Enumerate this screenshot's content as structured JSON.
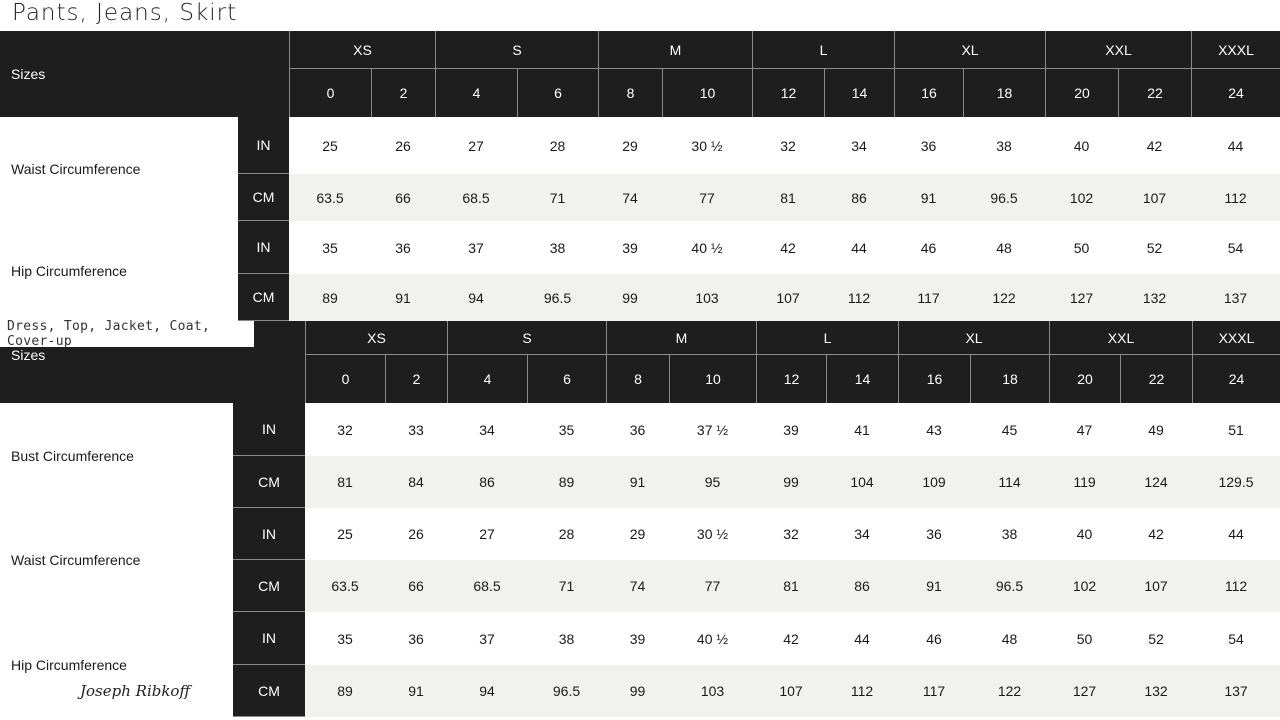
{
  "tables": [
    {
      "title": "Pants, Jeans, Skirt",
      "sizes_label": "Sizes",
      "size_groups": [
        {
          "label": "XS",
          "numbers": [
            "0",
            "2"
          ]
        },
        {
          "label": "S",
          "numbers": [
            "4",
            "6"
          ]
        },
        {
          "label": "M",
          "numbers": [
            "8",
            "10"
          ]
        },
        {
          "label": "L",
          "numbers": [
            "12",
            "14"
          ]
        },
        {
          "label": "XL",
          "numbers": [
            "16",
            "18"
          ]
        },
        {
          "label": "XXL",
          "numbers": [
            "20",
            "22"
          ]
        },
        {
          "label": "XXXL",
          "numbers": [
            "24"
          ]
        }
      ],
      "measurements": [
        {
          "label": "Waist Circumference",
          "rows": [
            {
              "unit": "IN",
              "values": [
                "25",
                "26",
                "27",
                "28",
                "29",
                "30 ½",
                "32",
                "34",
                "36",
                "38",
                "40",
                "42",
                "44"
              ]
            },
            {
              "unit": "CM",
              "values": [
                "63.5",
                "66",
                "68.5",
                "71",
                "74",
                "77",
                "81",
                "86",
                "91",
                "96.5",
                "102",
                "107",
                "112"
              ]
            }
          ]
        },
        {
          "label": "Hip Circumference",
          "rows": [
            {
              "unit": "IN",
              "values": [
                "35",
                "36",
                "37",
                "38",
                "39",
                "40 ½",
                "42",
                "44",
                "46",
                "48",
                "50",
                "52",
                "54"
              ]
            },
            {
              "unit": "CM",
              "values": [
                "89",
                "91",
                "94",
                "96.5",
                "99",
                "103",
                "107",
                "112",
                "117",
                "122",
                "127",
                "132",
                "137"
              ]
            }
          ]
        }
      ]
    },
    {
      "title": "Dress, Top, Jacket, Coat, Cover-up",
      "sizes_label": "Sizes",
      "size_groups": [
        {
          "label": "XS",
          "numbers": [
            "0",
            "2"
          ]
        },
        {
          "label": "S",
          "numbers": [
            "4",
            "6"
          ]
        },
        {
          "label": "M",
          "numbers": [
            "8",
            "10"
          ]
        },
        {
          "label": "L",
          "numbers": [
            "12",
            "14"
          ]
        },
        {
          "label": "XL",
          "numbers": [
            "16",
            "18"
          ]
        },
        {
          "label": "XXL",
          "numbers": [
            "20",
            "22"
          ]
        },
        {
          "label": "XXXL",
          "numbers": [
            "24"
          ]
        }
      ],
      "measurements": [
        {
          "label": "Bust Circumference",
          "rows": [
            {
              "unit": "IN",
              "values": [
                "32",
                "33",
                "34",
                "35",
                "36",
                "37 ½",
                "39",
                "41",
                "43",
                "45",
                "47",
                "49",
                "51"
              ]
            },
            {
              "unit": "CM",
              "values": [
                "81",
                "84",
                "86",
                "89",
                "91",
                "95",
                "99",
                "104",
                "109",
                "114",
                "119",
                "124",
                "129.5"
              ]
            }
          ]
        },
        {
          "label": "Waist Circumference",
          "rows": [
            {
              "unit": "IN",
              "values": [
                "25",
                "26",
                "27",
                "28",
                "29",
                "30 ½",
                "32",
                "34",
                "36",
                "38",
                "40",
                "42",
                "44"
              ]
            },
            {
              "unit": "CM",
              "values": [
                "63.5",
                "66",
                "68.5",
                "71",
                "74",
                "77",
                "81",
                "86",
                "91",
                "96.5",
                "102",
                "107",
                "112"
              ]
            }
          ]
        },
        {
          "label": "Hip Circumference",
          "rows": [
            {
              "unit": "IN",
              "values": [
                "35",
                "36",
                "37",
                "38",
                "39",
                "40 ½",
                "42",
                "44",
                "46",
                "48",
                "50",
                "52",
                "54"
              ]
            },
            {
              "unit": "CM",
              "values": [
                "89",
                "91",
                "94",
                "96.5",
                "99",
                "103",
                "107",
                "112",
                "117",
                "122",
                "127",
                "132",
                "137"
              ]
            }
          ]
        }
      ]
    }
  ],
  "brand_signature": "Joseph Ribkoff",
  "colors": {
    "header_bg": "#1e1e1e",
    "alt_row_bg": "#f1f1ed",
    "text": "#1a1a1a"
  }
}
